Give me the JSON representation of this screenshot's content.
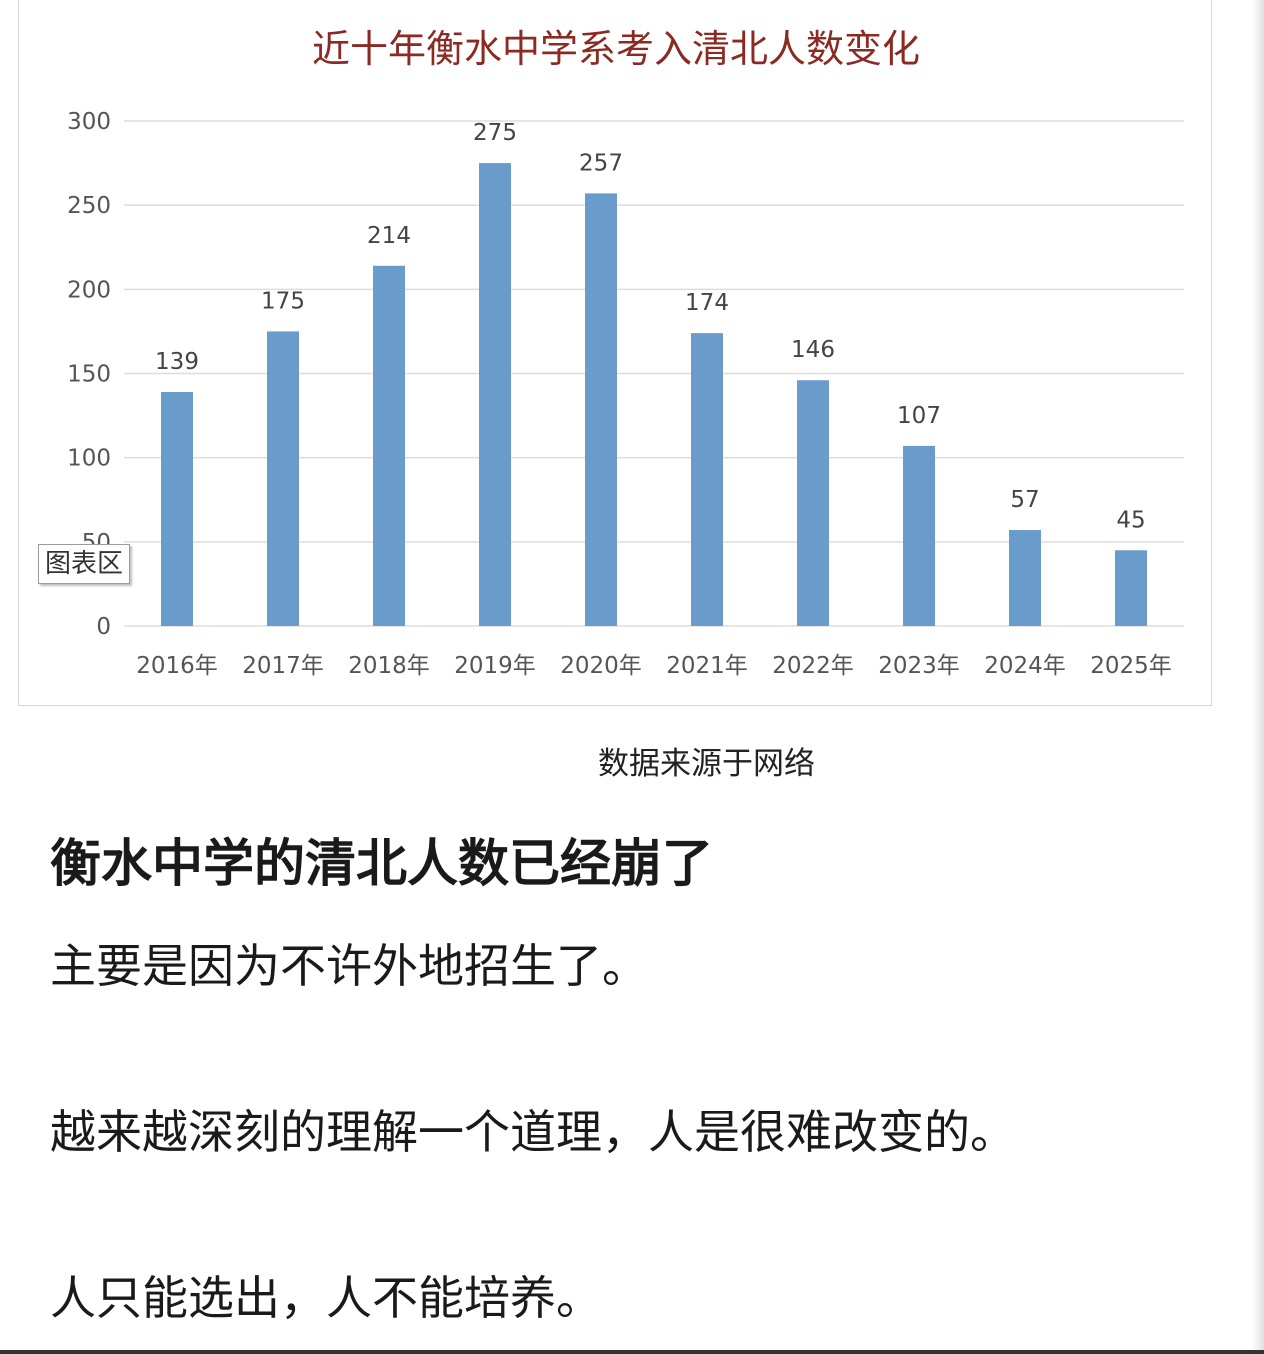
{
  "chart_data": {
    "type": "bar",
    "title": "近十年衡水中学系考入清北人数变化",
    "categories": [
      "2016年",
      "2017年",
      "2018年",
      "2019年",
      "2020年",
      "2021年",
      "2022年",
      "2023年",
      "2024年",
      "2025年"
    ],
    "values": [
      139,
      175,
      214,
      275,
      257,
      174,
      146,
      107,
      57,
      45
    ],
    "ylim": [
      0,
      300
    ],
    "yticks": [
      0,
      50,
      100,
      150,
      200,
      250,
      300
    ],
    "grid": true,
    "bar_color": "#6a9ccb",
    "title_color": "#8b2a22"
  },
  "chart_area_tag": "图表区",
  "source_note": "数据来源于网络",
  "article": {
    "heading": "衡水中学的清北人数已经崩了",
    "lines": [
      "主要是因为不许外地招生了。",
      "越来越深刻的理解一个道理，人是很难改变的。",
      "人只能选出，人不能培养。"
    ]
  }
}
